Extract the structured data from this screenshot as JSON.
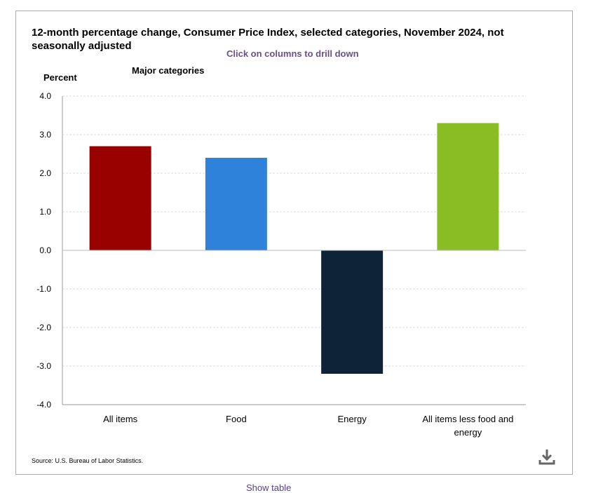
{
  "header": {
    "title": "12-month percentage change, Consumer Price Index, selected categories, November 2024, not seasonally adjusted",
    "subtitle": "Click on columns to drill down",
    "section": "Major categories"
  },
  "footer": {
    "source": "Source: U.S. Bureau of Labor Statistics.",
    "show_table": "Show table"
  },
  "icons": {
    "download": "download-icon"
  },
  "chart_data": {
    "type": "bar",
    "title": "12-month percentage change, Consumer Price Index, selected categories, November 2024, not seasonally adjusted",
    "xlabel": "",
    "ylabel": "Percent",
    "categories": [
      "All items",
      "Food",
      "Energy",
      "All items less food and energy"
    ],
    "values": [
      2.7,
      2.4,
      -3.2,
      3.3
    ],
    "colors": [
      "#990000",
      "#2e82da",
      "#0e2338",
      "#8abd24"
    ],
    "ylim": [
      -4.0,
      4.0
    ],
    "yticks": [
      "4.0",
      "3.0",
      "2.0",
      "1.0",
      "0.0",
      "-1.0",
      "-2.0",
      "-3.0",
      "-4.0"
    ],
    "ytick_values": [
      4,
      3,
      2,
      1,
      0,
      -1,
      -2,
      -3,
      -4
    ],
    "grid": true,
    "legend": "none"
  }
}
